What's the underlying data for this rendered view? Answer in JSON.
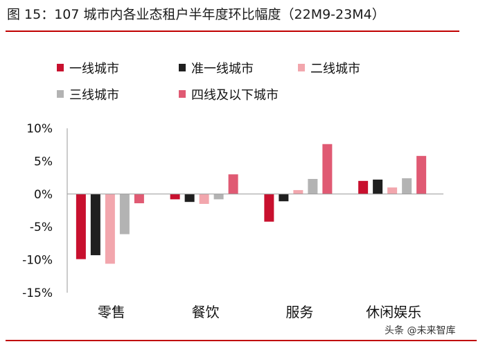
{
  "title": "图 15：107 城市内各业态租户半年度环比幅度（22M9-23M4）",
  "watermark": "头条 @未来智库",
  "chart_data": {
    "type": "bar",
    "title": "",
    "xlabel": "",
    "ylabel": "",
    "categories": [
      "零售",
      "餐饮",
      "服务",
      "休闲娱乐"
    ],
    "ylim": [
      -15,
      10
    ],
    "yticks": [
      10,
      5,
      0,
      -5,
      -10,
      -15
    ],
    "ytick_labels": [
      "10%",
      "5%",
      "0%",
      "-5%",
      "-10%",
      "-15%"
    ],
    "grid": false,
    "legend_position": "top-left",
    "series": [
      {
        "name": "一线城市",
        "color": "#c8102e",
        "values": [
          -9.9,
          -0.8,
          -4.2,
          2.0
        ]
      },
      {
        "name": "准一线城市",
        "color": "#1f1f1f",
        "values": [
          -9.3,
          -1.2,
          -1.1,
          2.2
        ]
      },
      {
        "name": "二线城市",
        "color": "#f2a6ad",
        "values": [
          -10.6,
          -1.5,
          0.6,
          1.0
        ]
      },
      {
        "name": "三线城市",
        "color": "#b3b3b3",
        "values": [
          -6.1,
          -0.8,
          2.3,
          2.4
        ]
      },
      {
        "name": "四线及以下城市",
        "color": "#e05a73",
        "values": [
          -1.4,
          3.0,
          7.6,
          5.8
        ]
      }
    ]
  }
}
